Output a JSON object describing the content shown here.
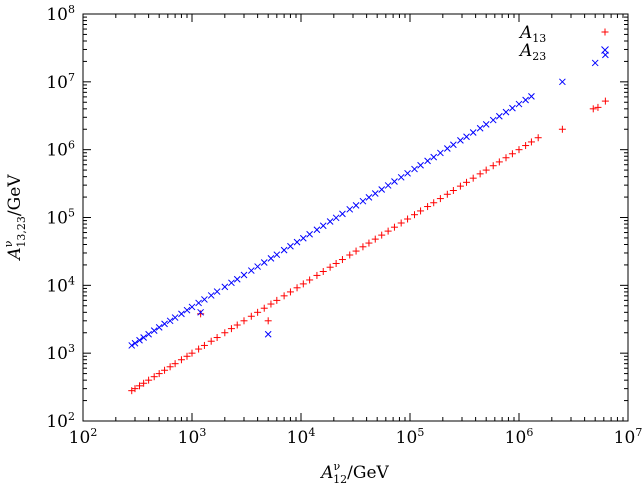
{
  "chart_data": {
    "type": "scatter",
    "xlabel": {
      "base": "A",
      "sup": "ν",
      "sub": "12",
      "unit": "/GeV"
    },
    "ylabel": {
      "base": "A",
      "sup": "ν",
      "sub": "13,23",
      "unit": "/GeV"
    },
    "xscale": "log",
    "yscale": "log",
    "xlim": [
      100,
      10000000
    ],
    "ylim": [
      100,
      100000000
    ],
    "x_ticks": [
      {
        "base": "10",
        "exp": "2"
      },
      {
        "base": "10",
        "exp": "3"
      },
      {
        "base": "10",
        "exp": "4"
      },
      {
        "base": "10",
        "exp": "5"
      },
      {
        "base": "10",
        "exp": "6"
      },
      {
        "base": "10",
        "exp": "7"
      }
    ],
    "y_ticks": [
      {
        "base": "10",
        "exp": "2"
      },
      {
        "base": "10",
        "exp": "3"
      },
      {
        "base": "10",
        "exp": "4"
      },
      {
        "base": "10",
        "exp": "5"
      },
      {
        "base": "10",
        "exp": "6"
      },
      {
        "base": "10",
        "exp": "7"
      },
      {
        "base": "10",
        "exp": "8"
      }
    ],
    "grid": false,
    "legend_position": "top-right",
    "series": [
      {
        "name_base": "A",
        "name_sub": "13",
        "marker": "+",
        "color": "#ff0000",
        "points": [
          [
            280,
            280
          ],
          [
            300,
            300
          ],
          [
            330,
            330
          ],
          [
            360,
            360
          ],
          [
            400,
            400
          ],
          [
            450,
            450
          ],
          [
            500,
            500
          ],
          [
            560,
            560
          ],
          [
            630,
            630
          ],
          [
            700,
            700
          ],
          [
            800,
            800
          ],
          [
            900,
            900
          ],
          [
            1000,
            1000
          ],
          [
            1150,
            1150
          ],
          [
            1300,
            1300
          ],
          [
            1500,
            1500
          ],
          [
            1700,
            1700
          ],
          [
            2000,
            2000
          ],
          [
            2300,
            2300
          ],
          [
            2600,
            2600
          ],
          [
            3000,
            3000
          ],
          [
            3500,
            3500
          ],
          [
            4000,
            4000
          ],
          [
            4600,
            4600
          ],
          [
            5300,
            5300
          ],
          [
            6000,
            6000
          ],
          [
            7000,
            7000
          ],
          [
            8000,
            8000
          ],
          [
            9200,
            9200
          ],
          [
            10500,
            10500
          ],
          [
            12000,
            12000
          ],
          [
            14000,
            14000
          ],
          [
            16000,
            16000
          ],
          [
            18500,
            18500
          ],
          [
            21000,
            21000
          ],
          [
            24000,
            24000
          ],
          [
            28000,
            28000
          ],
          [
            32000,
            32000
          ],
          [
            37000,
            37000
          ],
          [
            42000,
            42000
          ],
          [
            48000,
            48000
          ],
          [
            55000,
            55000
          ],
          [
            63000,
            63000
          ],
          [
            72000,
            72000
          ],
          [
            83000,
            83000
          ],
          [
            95000,
            95000
          ],
          [
            110000,
            110000
          ],
          [
            125000,
            125000
          ],
          [
            145000,
            145000
          ],
          [
            165000,
            165000
          ],
          [
            190000,
            190000
          ],
          [
            220000,
            220000
          ],
          [
            250000,
            250000
          ],
          [
            290000,
            290000
          ],
          [
            330000,
            330000
          ],
          [
            380000,
            380000
          ],
          [
            440000,
            440000
          ],
          [
            500000,
            500000
          ],
          [
            580000,
            580000
          ],
          [
            660000,
            660000
          ],
          [
            760000,
            760000
          ],
          [
            870000,
            870000
          ],
          [
            1000000,
            1000000
          ],
          [
            1150000,
            1150000
          ],
          [
            1300000,
            1300000
          ],
          [
            1500000,
            1500000
          ],
          [
            2500000,
            2000000
          ],
          [
            1200,
            3800
          ],
          [
            5000,
            3000
          ],
          [
            4800000,
            4000000
          ],
          [
            5300000,
            4200000
          ],
          [
            6200000,
            5200000
          ]
        ]
      },
      {
        "name_base": "A",
        "name_sub": "23",
        "marker": "x",
        "color": "#0000ff",
        "points": [
          [
            280,
            1300
          ],
          [
            300,
            1400
          ],
          [
            330,
            1550
          ],
          [
            360,
            1700
          ],
          [
            400,
            1900
          ],
          [
            450,
            2150
          ],
          [
            500,
            2400
          ],
          [
            560,
            2700
          ],
          [
            630,
            3000
          ],
          [
            700,
            3350
          ],
          [
            800,
            3800
          ],
          [
            900,
            4300
          ],
          [
            1000,
            4800
          ],
          [
            1150,
            5500
          ],
          [
            1300,
            6200
          ],
          [
            1500,
            7100
          ],
          [
            1700,
            8100
          ],
          [
            2000,
            9500
          ],
          [
            2300,
            10900
          ],
          [
            2600,
            12300
          ],
          [
            3000,
            14200
          ],
          [
            3500,
            16500
          ],
          [
            4000,
            18900
          ],
          [
            4600,
            21700
          ],
          [
            5300,
            25000
          ],
          [
            6000,
            28300
          ],
          [
            7000,
            33000
          ],
          [
            8000,
            37700
          ],
          [
            9200,
            43400
          ],
          [
            10500,
            49500
          ],
          [
            12000,
            56600
          ],
          [
            14000,
            66000
          ],
          [
            16000,
            75500
          ],
          [
            18500,
            87300
          ],
          [
            21000,
            99000
          ],
          [
            24000,
            113000
          ],
          [
            28000,
            132000
          ],
          [
            32000,
            151000
          ],
          [
            37000,
            174000
          ],
          [
            42000,
            198000
          ],
          [
            48000,
            226000
          ],
          [
            55000,
            259000
          ],
          [
            63000,
            297000
          ],
          [
            72000,
            339000
          ],
          [
            83000,
            391000
          ],
          [
            95000,
            448000
          ],
          [
            110000,
            518000
          ],
          [
            125000,
            589000
          ],
          [
            145000,
            683000
          ],
          [
            165000,
            777000
          ],
          [
            190000,
            895000
          ],
          [
            220000,
            1040000
          ],
          [
            250000,
            1180000
          ],
          [
            290000,
            1370000
          ],
          [
            330000,
            1550000
          ],
          [
            380000,
            1790000
          ],
          [
            440000,
            2070000
          ],
          [
            500000,
            2360000
          ],
          [
            580000,
            2730000
          ],
          [
            660000,
            3110000
          ],
          [
            760000,
            3580000
          ],
          [
            870000,
            4100000
          ],
          [
            1000000,
            4700000
          ],
          [
            1150000,
            5400000
          ],
          [
            1300000,
            6100000
          ],
          [
            2500000,
            10000000
          ],
          [
            1200,
            4000
          ],
          [
            5000,
            1900
          ],
          [
            5000000,
            19000000
          ],
          [
            6200000,
            25000000
          ]
        ]
      }
    ]
  }
}
